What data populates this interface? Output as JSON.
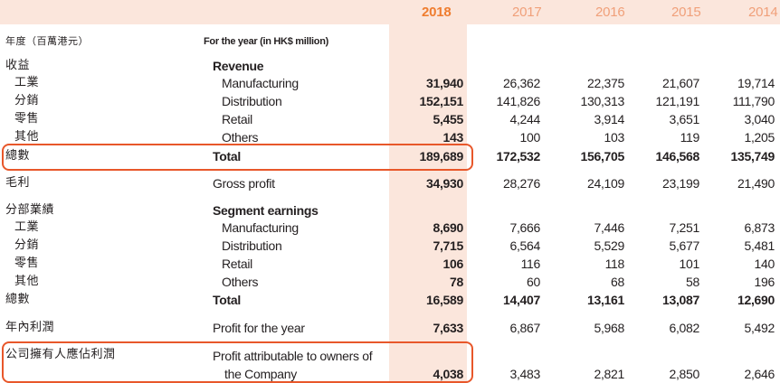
{
  "years": [
    "2018",
    "2017",
    "2016",
    "2015",
    "2014"
  ],
  "header": {
    "zh": "年度（百萬港元）",
    "en": "For the year (in HK$ million)"
  },
  "sections": {
    "revenue": {
      "zh": "收益",
      "en": "Revenue"
    },
    "segment": {
      "zh": "分部業績",
      "en": "Segment earnings"
    }
  },
  "rows": {
    "rev_manufacturing": {
      "zh": "工業",
      "en": "Manufacturing",
      "values": [
        "31,940",
        "26,362",
        "22,375",
        "21,607",
        "19,714"
      ]
    },
    "rev_distribution": {
      "zh": "分銷",
      "en": "Distribution",
      "values": [
        "152,151",
        "141,826",
        "130,313",
        "121,191",
        "111,790"
      ]
    },
    "rev_retail": {
      "zh": "零售",
      "en": "Retail",
      "values": [
        "5,455",
        "4,244",
        "3,914",
        "3,651",
        "3,040"
      ]
    },
    "rev_others": {
      "zh": "其他",
      "en": "Others",
      "values": [
        "143",
        "100",
        "103",
        "119",
        "1,205"
      ]
    },
    "rev_total": {
      "zh": "總數",
      "en": "Total",
      "values": [
        "189,689",
        "172,532",
        "156,705",
        "146,568",
        "135,749"
      ]
    },
    "gross_profit": {
      "zh": "毛利",
      "en": "Gross profit",
      "values": [
        "34,930",
        "28,276",
        "24,109",
        "23,199",
        "21,490"
      ]
    },
    "seg_manufacturing": {
      "zh": "工業",
      "en": "Manufacturing",
      "values": [
        "8,690",
        "7,666",
        "7,446",
        "7,251",
        "6,873"
      ]
    },
    "seg_distribution": {
      "zh": "分銷",
      "en": "Distribution",
      "values": [
        "7,715",
        "6,564",
        "5,529",
        "5,677",
        "5,481"
      ]
    },
    "seg_retail": {
      "zh": "零售",
      "en": "Retail",
      "values": [
        "106",
        "116",
        "118",
        "101",
        "140"
      ]
    },
    "seg_others": {
      "zh": "其他",
      "en": "Others",
      "values": [
        "78",
        "60",
        "68",
        "58",
        "196"
      ]
    },
    "seg_total": {
      "zh": "總數",
      "en": "Total",
      "values": [
        "16,589",
        "14,407",
        "13,161",
        "13,087",
        "12,690"
      ]
    },
    "profit_year": {
      "zh": "年內利潤",
      "en": "Profit for the year",
      "values": [
        "7,633",
        "6,867",
        "5,968",
        "6,082",
        "5,492"
      ]
    },
    "profit_owners": {
      "zh": "公司擁有人應佔利潤",
      "en_line1": "Profit attributable to owners of",
      "en_line2": "the Company",
      "values": [
        "4,038",
        "3,483",
        "2,821",
        "2,850",
        "2,646"
      ]
    }
  }
}
